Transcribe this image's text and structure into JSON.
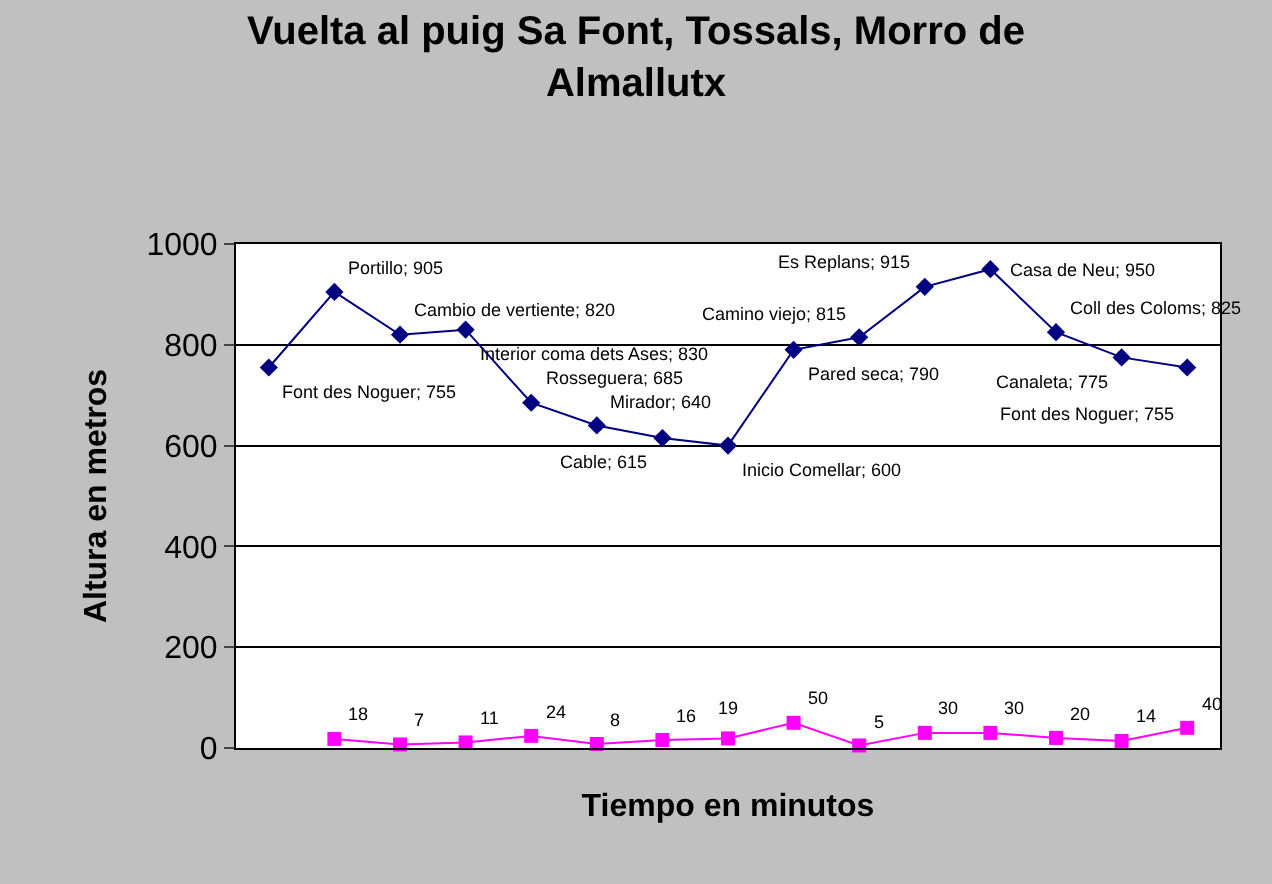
{
  "chart_data": {
    "type": "line",
    "title": "Vuelta al puig Sa Font, Tossals, Morro de Almallutx",
    "xlabel": "Tiempo en minutos",
    "ylabel": "Altura en metros",
    "categories": [
      null,
      null,
      null,
      null,
      null,
      null,
      null,
      null,
      null,
      null,
      null,
      null,
      null,
      null,
      null
    ],
    "series": [
      {
        "color": "#000080",
        "marker": "diamond",
        "values": [
          755,
          905,
          820,
          830,
          685,
          640,
          615,
          600,
          790,
          815,
          915,
          950,
          825,
          775,
          755
        ],
        "value_labels": [
          "Font des Noguer; 755",
          "Portillo; 905",
          "Cambio de vertiente; 820",
          "Interior coma dets Ases; 830",
          "Rosseguera; 685",
          "Mirador; 640",
          "Cable; 615",
          "Inicio Comellar; 600",
          "Pared seca; 790",
          "Camino viejo; 815",
          "Es Replans; 915",
          "Casa de Neu; 950",
          "Coll des Coloms; 825",
          "Canaleta; 775",
          "Font des Noguer; 755"
        ]
      },
      {
        "color": "#ff00ff",
        "marker": "square",
        "values": [
          null,
          18,
          7,
          11,
          24,
          8,
          16,
          19,
          50,
          5,
          30,
          30,
          20,
          14,
          40
        ],
        "value_labels": [
          null,
          "18",
          "7",
          "11",
          "24",
          "8",
          "16",
          "19",
          "50",
          "5",
          "30",
          "30",
          "20",
          "14",
          "40"
        ]
      }
    ],
    "ylim": [
      0,
      1000
    ],
    "yticks": [
      0,
      200,
      400,
      600,
      800,
      1000
    ],
    "grid": "y"
  }
}
